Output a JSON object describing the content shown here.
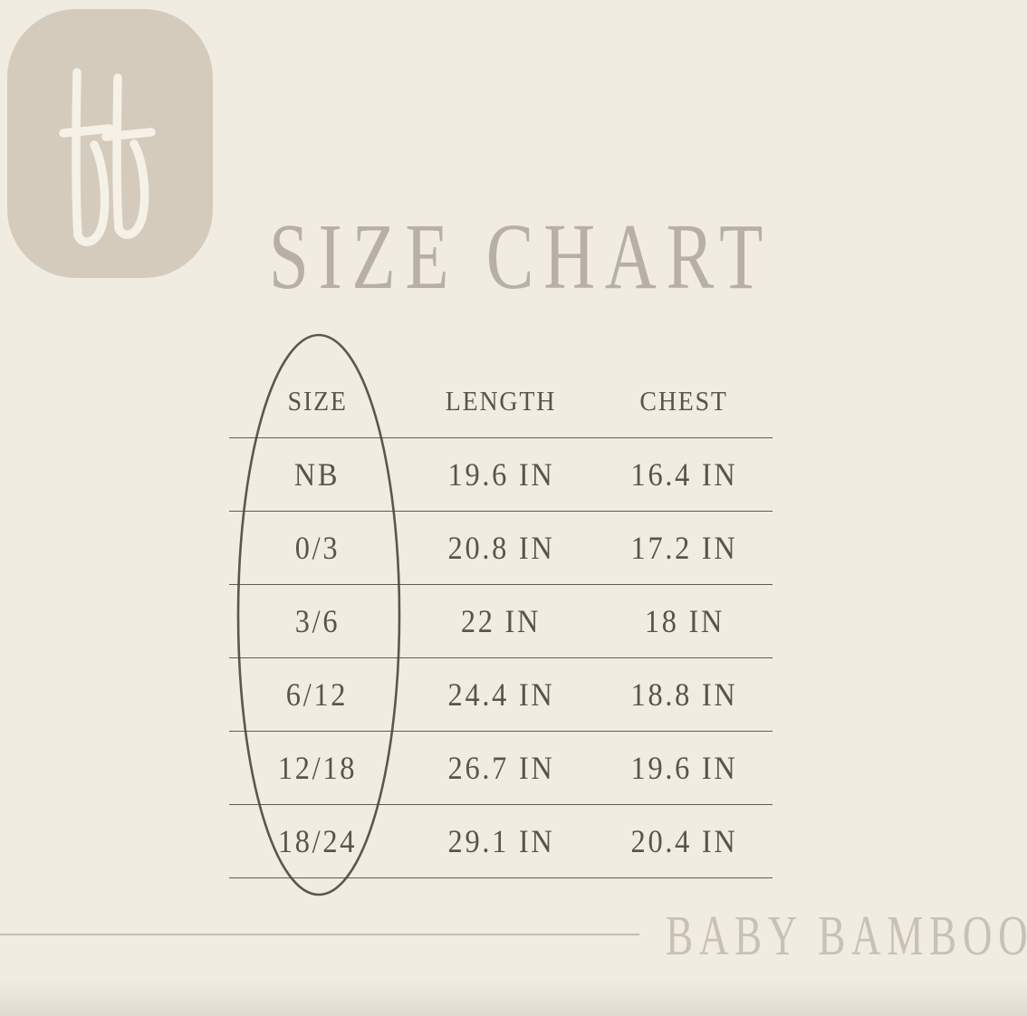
{
  "title": "SIZE CHART",
  "logo": {
    "monogram": "bb",
    "bg_color": "#d4cbbc",
    "glyph_color": "#f6f1e7"
  },
  "table": {
    "headers": [
      "SIZE",
      "LENGTH",
      "CHEST"
    ],
    "rows": [
      [
        "NB",
        "19.6 IN",
        "16.4 IN"
      ],
      [
        "0/3",
        "20.8 IN",
        "17.2 IN"
      ],
      [
        "3/6",
        "22 IN",
        "18 IN"
      ],
      [
        "6/12",
        "24.4 IN",
        "18.8 IN"
      ],
      [
        "12/18",
        "26.7 IN",
        "19.6 IN"
      ],
      [
        "18/24",
        "29.1 IN",
        "20.4 IN"
      ]
    ]
  },
  "footer": {
    "brand": "BABY BAMBOO"
  },
  "colors": {
    "background": "#f1ece2",
    "title_text": "#b8b0a4",
    "table_text": "#57544c",
    "table_lines": "#5f5b53",
    "ellipse_stroke": "#4d4a44",
    "brand_text": "#c9c1b3",
    "footer_line": "#c5bdaf"
  },
  "chart_data": {
    "type": "table",
    "title": "SIZE CHART",
    "columns": [
      "SIZE",
      "LENGTH",
      "CHEST"
    ],
    "rows": [
      [
        "NB",
        "19.6 IN",
        "16.4 IN"
      ],
      [
        "0/3",
        "20.8 IN",
        "17.2 IN"
      ],
      [
        "3/6",
        "22 IN",
        "18 IN"
      ],
      [
        "6/12",
        "24.4 IN",
        "18.8 IN"
      ],
      [
        "12/18",
        "26.7 IN",
        "19.6 IN"
      ],
      [
        "18/24",
        "29.1 IN",
        "20.4 IN"
      ]
    ],
    "units": "inches",
    "annotations": [
      "hand-drawn ellipse circling the SIZE column"
    ],
    "footer": "BABY BAMBOO"
  }
}
